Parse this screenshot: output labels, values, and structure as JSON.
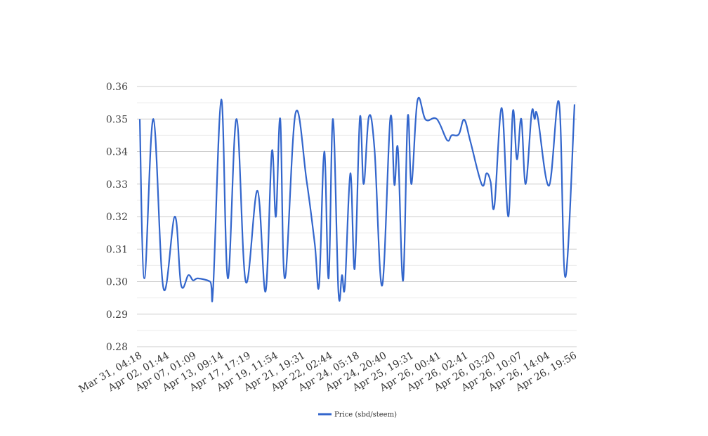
{
  "chart_data": {
    "type": "line",
    "title": "",
    "xlabel": "",
    "ylabel": "",
    "ylim": [
      0.28,
      0.36
    ],
    "yticks": [
      0.28,
      0.29,
      0.3,
      0.31,
      0.32,
      0.33,
      0.34,
      0.35,
      0.36
    ],
    "ytick_labels": [
      "0.28",
      "0.29",
      "0.30",
      "0.31",
      "0.32",
      "0.33",
      "0.34",
      "0.35",
      "0.36"
    ],
    "grid": true,
    "smooth": true,
    "legend_position": "bottom",
    "categories": [
      "Mar 31, 04:18",
      "Apr 02, 01:44",
      "Apr 07, 01:09",
      "Apr 13, 09:14",
      "Apr 17, 17:19",
      "Apr 19, 11:54",
      "Apr 21, 19:31",
      "Apr 22, 02:44",
      "Apr 24, 05:18",
      "Apr 24, 20:40",
      "Apr 25, 19:31",
      "Apr 26, 00:41",
      "Apr 26, 02:41",
      "Apr 26, 03:20",
      "Apr 26, 10:07",
      "Apr 26, 14:04",
      "Apr 26, 19:56"
    ],
    "series": [
      {
        "name": "Price (sbd/steem)",
        "color": "#3366cc",
        "points": [
          [
            0,
            0.35
          ],
          [
            0.17,
            0.301
          ],
          [
            0.5,
            0.35
          ],
          [
            0.87,
            0.298
          ],
          [
            1.29,
            0.32
          ],
          [
            1.52,
            0.299
          ],
          [
            1.79,
            0.302
          ],
          [
            1.96,
            0.3004
          ],
          [
            2.14,
            0.301
          ],
          [
            2.59,
            0.3
          ],
          [
            2.7,
            0.298
          ],
          [
            3.0,
            0.356
          ],
          [
            3.24,
            0.301
          ],
          [
            3.56,
            0.35
          ],
          [
            3.9,
            0.3
          ],
          [
            4.33,
            0.328
          ],
          [
            4.63,
            0.297
          ],
          [
            4.86,
            0.34
          ],
          [
            5.01,
            0.32
          ],
          [
            5.17,
            0.35
          ],
          [
            5.34,
            0.301
          ],
          [
            5.73,
            0.3517
          ],
          [
            6.14,
            0.331
          ],
          [
            6.44,
            0.3116
          ],
          [
            6.6,
            0.299
          ],
          [
            6.79,
            0.34
          ],
          [
            6.95,
            0.301
          ],
          [
            7.11,
            0.35
          ],
          [
            7.31,
            0.297
          ],
          [
            7.44,
            0.302
          ],
          [
            7.55,
            0.2987
          ],
          [
            7.75,
            0.3333
          ],
          [
            7.91,
            0.304
          ],
          [
            8.1,
            0.3504
          ],
          [
            8.24,
            0.33
          ],
          [
            8.43,
            0.3507
          ],
          [
            8.64,
            0.3405
          ],
          [
            8.92,
            0.2988
          ],
          [
            9.22,
            0.3503
          ],
          [
            9.37,
            0.3298
          ],
          [
            9.5,
            0.3408
          ],
          [
            9.69,
            0.3003
          ],
          [
            9.86,
            0.3506
          ],
          [
            10.0,
            0.33
          ],
          [
            10.22,
            0.3557
          ],
          [
            10.52,
            0.3498
          ],
          [
            10.93,
            0.35
          ],
          [
            11.31,
            0.3435
          ],
          [
            11.48,
            0.345
          ],
          [
            11.74,
            0.3453
          ],
          [
            11.94,
            0.3498
          ],
          [
            12.17,
            0.343
          ],
          [
            12.59,
            0.3298
          ],
          [
            12.76,
            0.3333
          ],
          [
            12.91,
            0.3307
          ],
          [
            13.05,
            0.3232
          ],
          [
            13.32,
            0.3534
          ],
          [
            13.56,
            0.32
          ],
          [
            13.73,
            0.3524
          ],
          [
            13.88,
            0.3376
          ],
          [
            14.04,
            0.35
          ],
          [
            14.2,
            0.33
          ],
          [
            14.42,
            0.3518
          ],
          [
            14.53,
            0.35
          ],
          [
            14.64,
            0.3508
          ],
          [
            15.06,
            0.3295
          ],
          [
            15.43,
            0.355
          ],
          [
            15.66,
            0.3014
          ],
          [
            16,
            0.3545
          ]
        ]
      }
    ]
  }
}
